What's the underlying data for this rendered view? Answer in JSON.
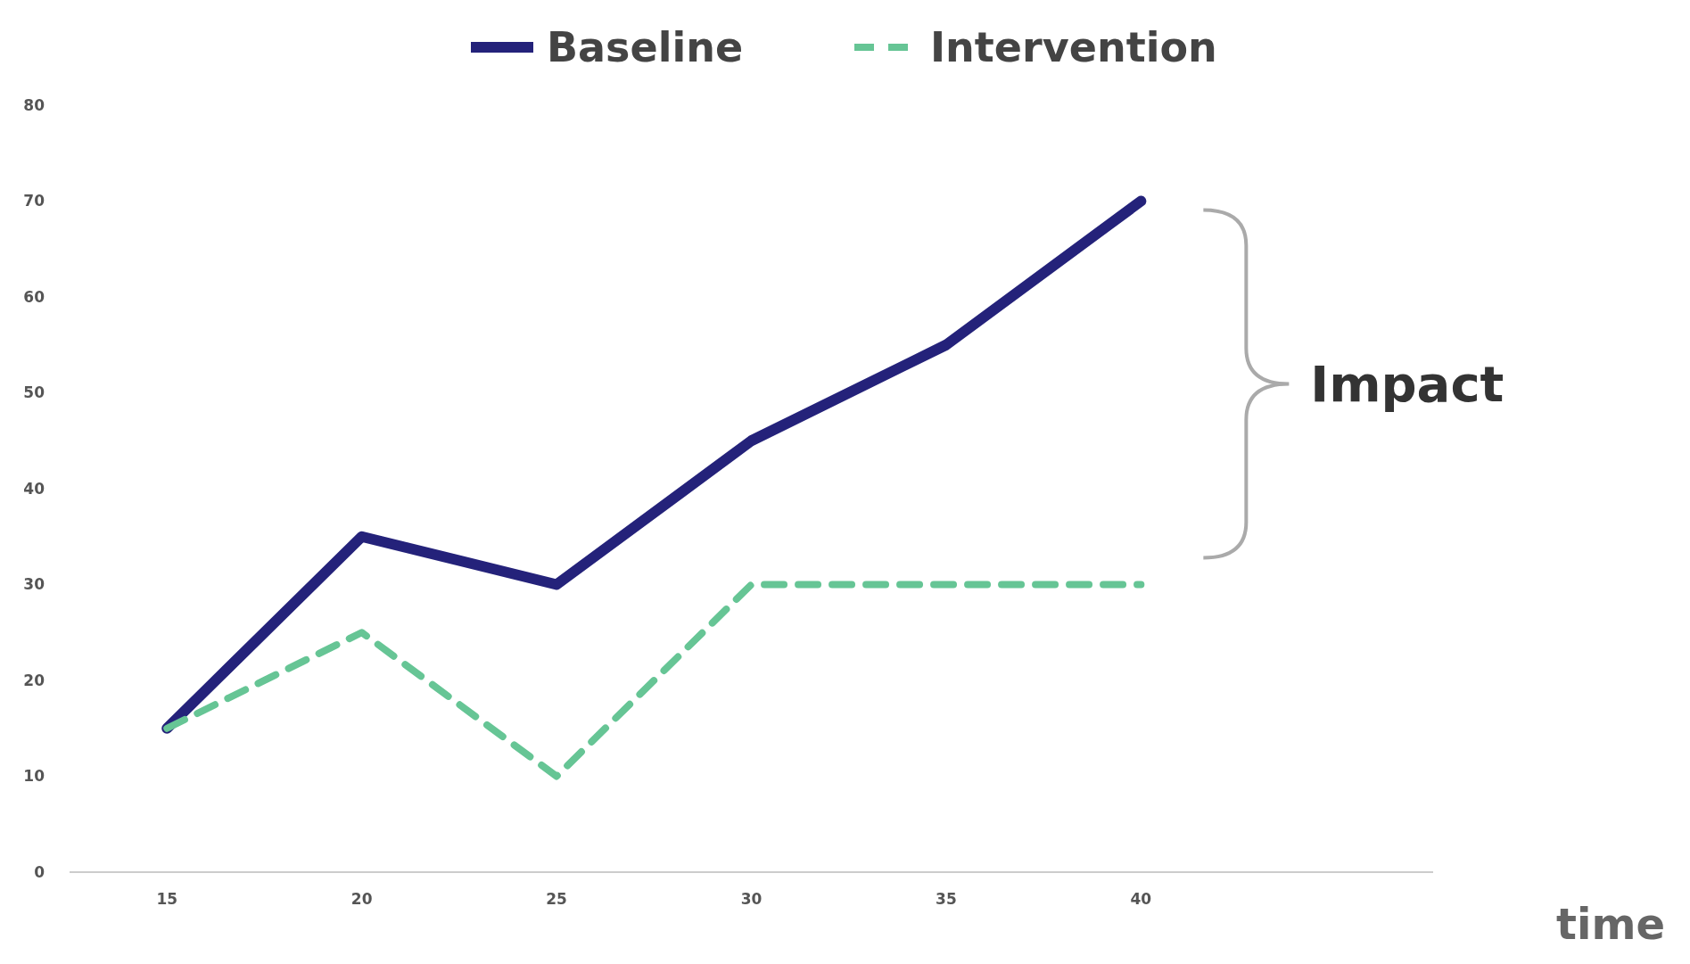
{
  "chart_data": {
    "type": "line",
    "xlabel": "time",
    "x": [
      15,
      20,
      25,
      30,
      35,
      40
    ],
    "xlim": [
      12.5,
      47.5
    ],
    "xticks": [
      15,
      20,
      25,
      30,
      35,
      40
    ],
    "ylim": [
      0,
      80
    ],
    "yticks": [
      0,
      10,
      20,
      30,
      40,
      50,
      60,
      70,
      80
    ],
    "grid": false,
    "legend": "top",
    "marker": "none",
    "series": [
      {
        "name": "Baseline",
        "color": "#24227a",
        "values": [
          15,
          35,
          30,
          45,
          55,
          70
        ],
        "line_style": "solid"
      },
      {
        "name": "Intervention",
        "color": "#66c595",
        "values": [
          15,
          25,
          10,
          30,
          30,
          30
        ],
        "line_style": "dashed"
      }
    ],
    "annotations": [
      "Impact"
    ]
  }
}
